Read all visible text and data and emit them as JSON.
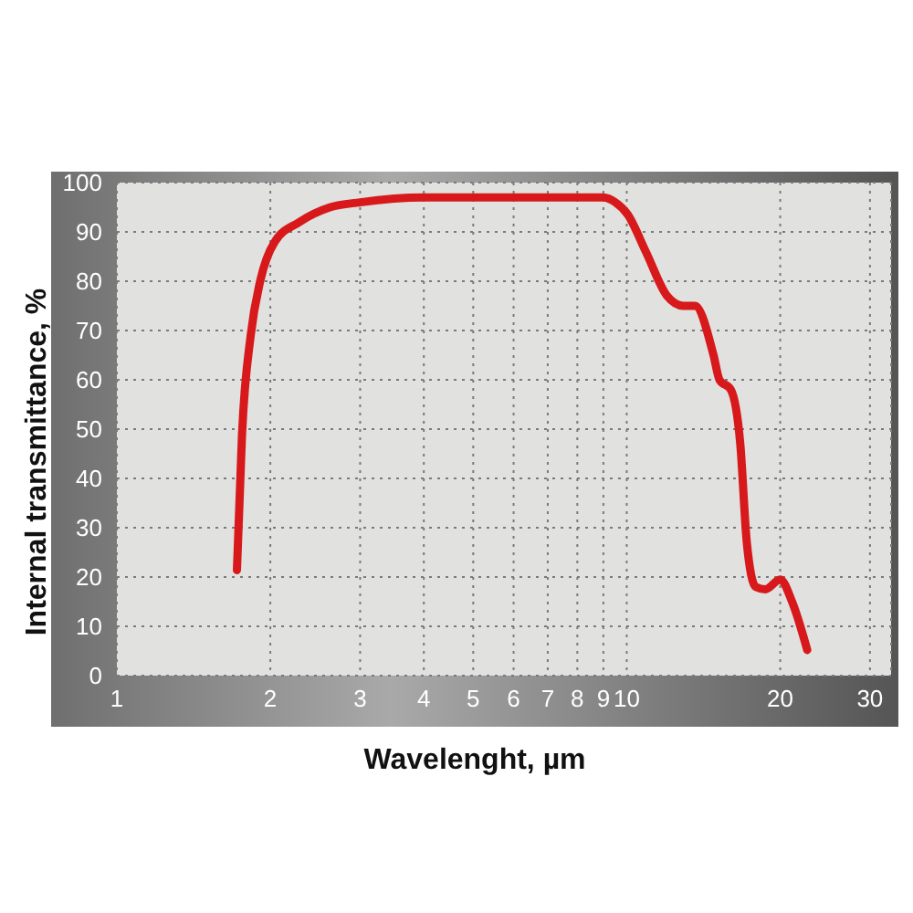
{
  "chart_data": {
    "type": "line",
    "xlabel": "Wavelenght, µm",
    "ylabel": "Internal transmittance, %",
    "log": "x",
    "grid": true,
    "xlim": [
      1,
      33
    ],
    "ylim": [
      0,
      100
    ],
    "xticks": [
      1,
      2,
      3,
      4,
      5,
      6,
      7,
      8,
      9,
      10,
      20,
      30
    ],
    "yticks": [
      0,
      10,
      20,
      30,
      40,
      50,
      60,
      70,
      80,
      90,
      100
    ],
    "x": [
      1.72,
      1.76,
      1.83,
      1.91,
      2.04,
      2.28,
      2.62,
      3.0,
      4.0,
      9.0,
      9.5,
      10.05,
      10.9,
      12.0,
      12.9,
      13.6,
      14.8,
      15.2,
      16.0,
      16.7,
      17.2,
      17.9,
      18.7,
      20.0,
      21.1,
      22.6
    ],
    "series": [
      {
        "color": "#d7191c",
        "values": [
          21.4,
          49,
          69,
          80,
          88,
          92,
          95,
          96,
          97,
          97,
          96,
          93.5,
          86,
          77,
          75,
          75,
          65,
          60,
          58,
          47,
          27,
          18,
          17.5,
          19.5,
          15,
          5.2
        ]
      }
    ]
  }
}
